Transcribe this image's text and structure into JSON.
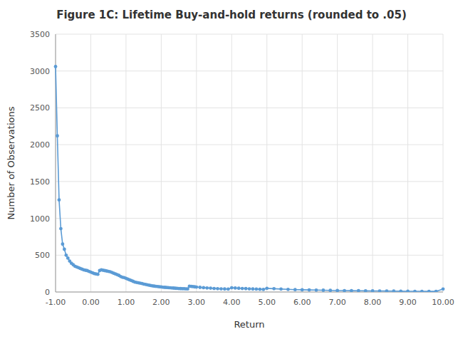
{
  "chart_data": {
    "type": "line",
    "title": "Figure 1C: Lifetime Buy-and-hold returns (rounded to .05)",
    "xlabel": "Return",
    "ylabel": "Number of Observations",
    "xlim": [
      -1.0,
      10.0
    ],
    "ylim": [
      0,
      3500
    ],
    "xticks": [
      {
        "value": -1.0,
        "label": "-1.00"
      },
      {
        "value": 0.0,
        "label": "0.00"
      },
      {
        "value": 1.0,
        "label": "1.00"
      },
      {
        "value": 2.0,
        "label": "2.00"
      },
      {
        "value": 3.0,
        "label": "3.00"
      },
      {
        "value": 4.0,
        "label": "4.00"
      },
      {
        "value": 5.0,
        "label": "5.00"
      },
      {
        "value": 6.0,
        "label": "6.00"
      },
      {
        "value": 7.0,
        "label": "7.00"
      },
      {
        "value": 8.0,
        "label": "8.00"
      },
      {
        "value": 9.0,
        "label": "9.00"
      },
      {
        "value": 10.0,
        "label": "10.00"
      }
    ],
    "yticks": [
      0,
      500,
      1000,
      1500,
      2000,
      2500,
      3000,
      3500
    ],
    "grid": true,
    "color": "#5B9BD5",
    "marker": "circle",
    "x": [
      -1.0,
      -0.95,
      -0.9,
      -0.85,
      -0.8,
      -0.75,
      -0.7,
      -0.65,
      -0.6,
      -0.55,
      -0.5,
      -0.45,
      -0.4,
      -0.35,
      -0.3,
      -0.25,
      -0.2,
      -0.15,
      -0.1,
      -0.05,
      0.0,
      0.05,
      0.1,
      0.15,
      0.2,
      0.25,
      0.3,
      0.35,
      0.4,
      0.45,
      0.5,
      0.55,
      0.6,
      0.65,
      0.7,
      0.75,
      0.8,
      0.85,
      0.9,
      0.95,
      1.0,
      1.05,
      1.1,
      1.15,
      1.2,
      1.25,
      1.3,
      1.35,
      1.4,
      1.45,
      1.5,
      1.55,
      1.6,
      1.65,
      1.7,
      1.75,
      1.8,
      1.85,
      1.9,
      1.95,
      2.0,
      2.05,
      2.1,
      2.15,
      2.2,
      2.25,
      2.3,
      2.35,
      2.4,
      2.45,
      2.5,
      2.55,
      2.6,
      2.65,
      2.7,
      2.75,
      2.8,
      2.85,
      2.9,
      2.95,
      3.0,
      3.1,
      3.2,
      3.3,
      3.4,
      3.5,
      3.6,
      3.7,
      3.8,
      3.9,
      4.0,
      4.1,
      4.2,
      4.3,
      4.4,
      4.5,
      4.6,
      4.7,
      4.8,
      4.9,
      5.0,
      5.2,
      5.4,
      5.6,
      5.8,
      6.0,
      6.2,
      6.4,
      6.6,
      6.8,
      7.0,
      7.2,
      7.4,
      7.6,
      7.8,
      8.0,
      8.2,
      8.4,
      8.6,
      8.8,
      9.0,
      9.2,
      9.4,
      9.6,
      9.8,
      10.0
    ],
    "values": [
      3060,
      2120,
      1250,
      860,
      650,
      580,
      500,
      460,
      420,
      390,
      370,
      350,
      340,
      330,
      320,
      310,
      300,
      295,
      290,
      280,
      270,
      260,
      250,
      245,
      240,
      290,
      300,
      295,
      290,
      285,
      280,
      275,
      265,
      255,
      245,
      235,
      225,
      210,
      200,
      195,
      185,
      175,
      165,
      155,
      145,
      135,
      130,
      125,
      120,
      115,
      108,
      103,
      98,
      93,
      88,
      83,
      80,
      77,
      74,
      71,
      68,
      65,
      63,
      61,
      59,
      57,
      55,
      53,
      51,
      49,
      47,
      46,
      45,
      44,
      43,
      42,
      78,
      76,
      73,
      70,
      67,
      63,
      59,
      55,
      52,
      48,
      45,
      43,
      41,
      39,
      57,
      54,
      51,
      48,
      46,
      43,
      41,
      39,
      37,
      35,
      50,
      45,
      40,
      36,
      32,
      30,
      28,
      26,
      24,
      22,
      20,
      19,
      18,
      17,
      16,
      15,
      14,
      13,
      12,
      11,
      10,
      9,
      9,
      8,
      8,
      40
    ]
  }
}
